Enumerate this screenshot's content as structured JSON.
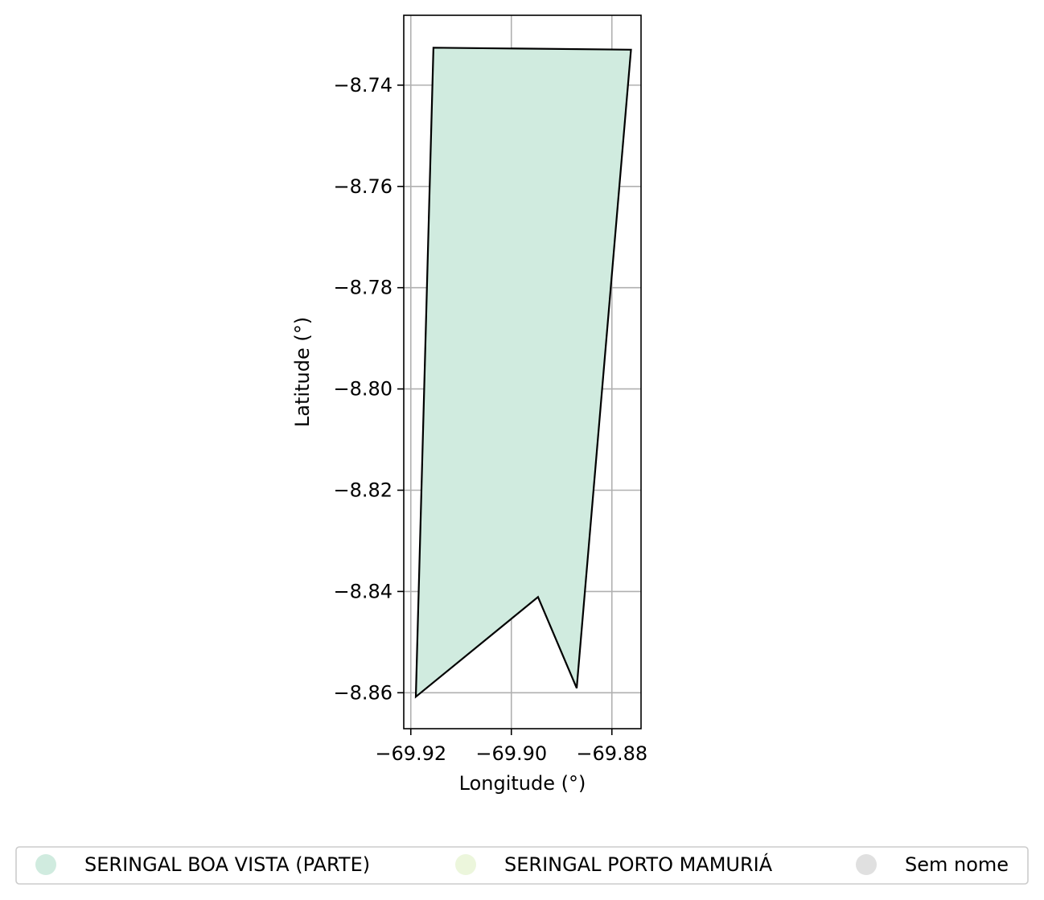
{
  "chart_data": {
    "type": "map",
    "xlabel": "Longitude (°)",
    "ylabel": "Latitude (°)",
    "xlim": [
      -69.9214,
      -69.8742
    ],
    "ylim": [
      -8.8671,
      -8.7262
    ],
    "x_ticks": [
      -69.92,
      -69.9,
      -69.88
    ],
    "y_ticks": [
      -8.74,
      -8.76,
      -8.78,
      -8.8,
      -8.82,
      -8.84,
      -8.86
    ],
    "x_tick_labels": [
      "−69.92",
      "−69.90",
      "−69.88"
    ],
    "y_tick_labels": [
      "−8.74",
      "−8.76",
      "−8.78",
      "−8.80",
      "−8.82",
      "−8.84",
      "−8.86"
    ],
    "grid": true,
    "polygons": [
      {
        "category": "SERINGAL BOA VISTA (PARTE)",
        "fill": "#d0ebdf",
        "coordinates": [
          [
            -69.9155,
            -8.7326
          ],
          [
            -69.8762,
            -8.733
          ],
          [
            -69.887,
            -8.8591
          ],
          [
            -69.8947,
            -8.8411
          ],
          [
            -69.919,
            -8.8608
          ]
        ]
      }
    ],
    "legend": {
      "placement": "bottom",
      "entries": [
        {
          "label": "SERINGAL BOA VISTA (PARTE)",
          "color": "#d0ebdf"
        },
        {
          "label": "SERINGAL PORTO MAMURIÁ",
          "color": "#ecf6dc"
        },
        {
          "label": "Sem nome",
          "color": "#e0e0e0"
        }
      ]
    }
  }
}
